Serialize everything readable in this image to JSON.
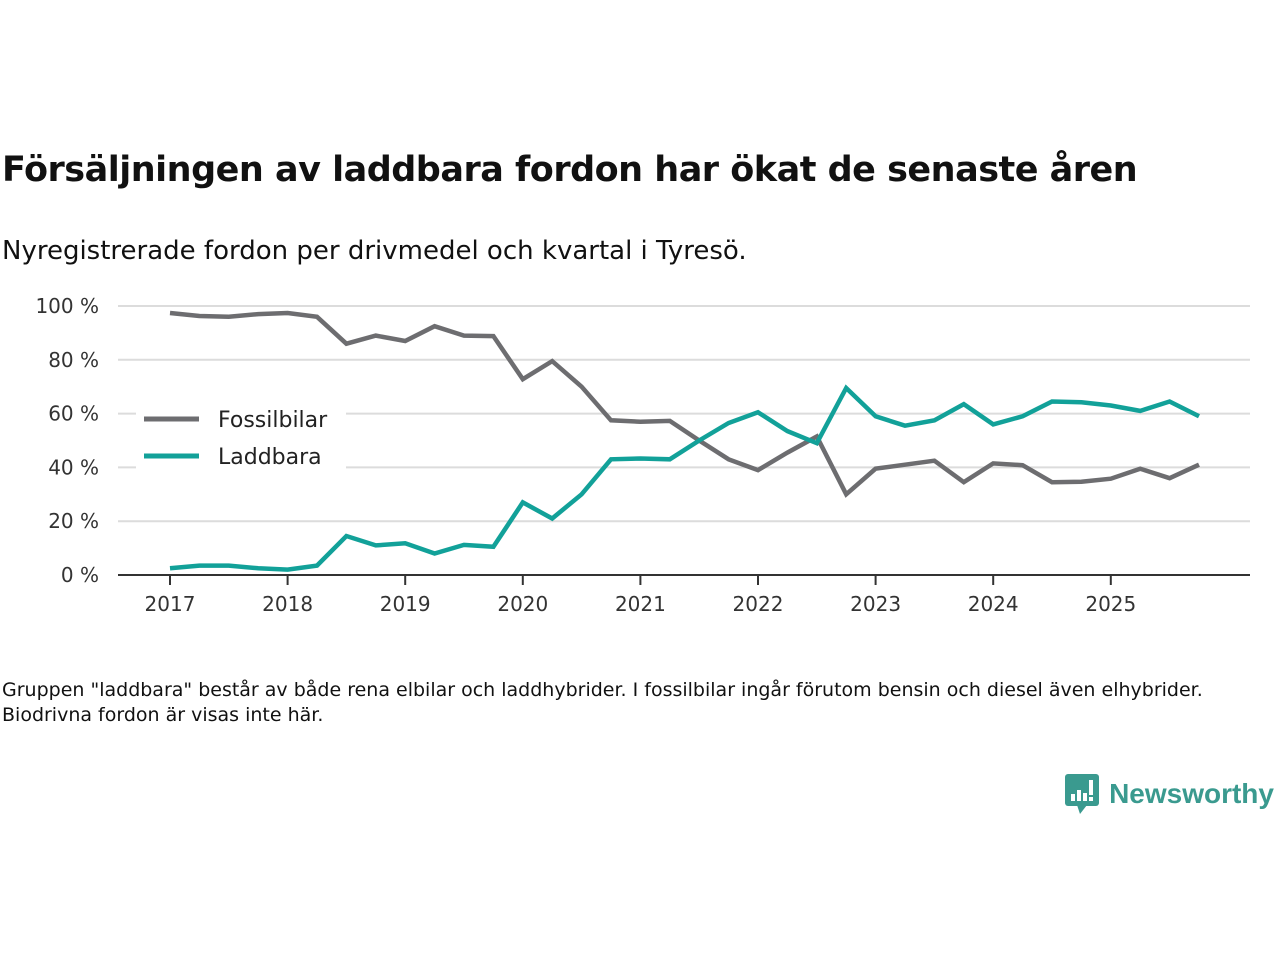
{
  "header": {
    "title": "Försäljningen av laddbara fordon har ökat de senaste åren",
    "subtitle": "Nyregistrerade fordon per drivmedel och kvartal i Tyresö."
  },
  "footer": {
    "note": "Gruppen \"laddbara\" består av både rena elbilar och laddhybrider. I fossilbilar ingår förutom bensin och diesel även elhybrider. Biodrivna fordon är visas inte här.",
    "brand": "Newsworthy",
    "brand_icon": "chart-speech-bubble-icon",
    "brand_color": "#3a9a8f"
  },
  "chart_data": {
    "type": "line",
    "title": "Försäljningen av laddbara fordon har ökat de senaste åren",
    "subtitle": "Nyregistrerade fordon per drivmedel och kvartal i Tyresö.",
    "xlabel": "",
    "ylabel": "",
    "x": [
      "2017Q1",
      "2017Q2",
      "2017Q3",
      "2017Q4",
      "2018Q1",
      "2018Q2",
      "2018Q3",
      "2018Q4",
      "2019Q1",
      "2019Q2",
      "2019Q3",
      "2019Q4",
      "2020Q1",
      "2020Q2",
      "2020Q3",
      "2020Q4",
      "2021Q1",
      "2021Q2",
      "2021Q3",
      "2021Q4",
      "2022Q1",
      "2022Q2",
      "2022Q3",
      "2022Q4",
      "2023Q1",
      "2023Q2",
      "2023Q3",
      "2023Q4",
      "2024Q1",
      "2024Q2",
      "2024Q3",
      "2024Q4",
      "2025Q1",
      "2025Q2",
      "2025Q3",
      "2025Q4"
    ],
    "x_tick_labels": [
      "2017",
      "2018",
      "2019",
      "2020",
      "2021",
      "2022",
      "2023",
      "2024",
      "2025"
    ],
    "y_tick_labels": [
      "0 %",
      "20 %",
      "40 %",
      "60 %",
      "80 %",
      "100 %"
    ],
    "y_ticks": [
      0,
      20,
      40,
      60,
      80,
      100
    ],
    "ylim": [
      0,
      100
    ],
    "grid": true,
    "legend_position": "left-center",
    "series": [
      {
        "name": "Fossilbilar",
        "color": "#6d6d70",
        "values": [
          97.4,
          96.3,
          96.0,
          97.0,
          97.4,
          96.0,
          86.0,
          89.0,
          87.0,
          92.5,
          89.0,
          88.8,
          72.8,
          79.5,
          70.0,
          57.5,
          57.0,
          57.3,
          50.0,
          43.0,
          39.0,
          45.5,
          51.5,
          30.0,
          39.5,
          41.0,
          42.5,
          34.5,
          41.5,
          40.8,
          34.5,
          34.7,
          35.8,
          39.5,
          36.0,
          41.0
        ]
      },
      {
        "name": "Laddbara",
        "color": "#12a199",
        "values": [
          2.5,
          3.5,
          3.5,
          2.5,
          2.0,
          3.5,
          14.5,
          11.0,
          11.8,
          8.0,
          11.2,
          10.5,
          27.0,
          21.0,
          30.0,
          43.0,
          43.3,
          43.0,
          50.0,
          56.5,
          60.5,
          53.5,
          49.0,
          69.5,
          59.0,
          55.5,
          57.5,
          63.5,
          56.0,
          59.0,
          64.5,
          64.2,
          63.0,
          61.0,
          64.5,
          59.0
        ]
      }
    ]
  }
}
